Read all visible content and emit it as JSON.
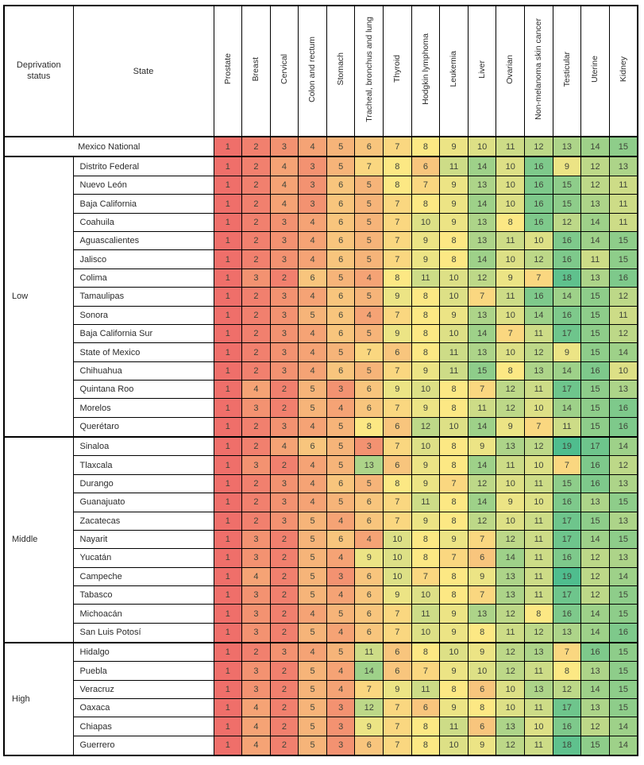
{
  "table": {
    "header": {
      "deprivation_label": "Deprivation status",
      "state_label": "State",
      "cancer_columns": [
        "Prostate",
        "Breast",
        "Cervical",
        "Colon and rectum",
        "Stomach",
        "Tracheal, bronchus and lung",
        "Thyroid",
        "Hodgkin lymphoma",
        "Leukemia",
        "Liver",
        "Ovarian",
        "Non-melanoma skin cancer",
        "Testicular",
        "Uterine",
        "Kidney"
      ]
    },
    "national": {
      "state": "Mexico National",
      "values": [
        1,
        2,
        3,
        4,
        5,
        6,
        7,
        8,
        9,
        10,
        11,
        12,
        13,
        14,
        15
      ]
    },
    "groups": [
      {
        "label": "Low",
        "rows": [
          {
            "state": "Distrito Federal",
            "values": [
              1,
              2,
              4,
              3,
              5,
              7,
              8,
              6,
              11,
              14,
              10,
              16,
              9,
              12,
              13
            ]
          },
          {
            "state": "Nuevo León",
            "values": [
              1,
              2,
              4,
              3,
              6,
              5,
              8,
              7,
              9,
              13,
              10,
              16,
              15,
              12,
              11
            ]
          },
          {
            "state": "Baja California",
            "values": [
              1,
              2,
              4,
              3,
              6,
              5,
              7,
              8,
              9,
              14,
              10,
              16,
              15,
              13,
              11
            ]
          },
          {
            "state": "Coahuila",
            "values": [
              1,
              2,
              3,
              4,
              6,
              5,
              7,
              10,
              9,
              13,
              8,
              16,
              12,
              14,
              11
            ]
          },
          {
            "state": "Aguascalientes",
            "values": [
              1,
              2,
              3,
              4,
              6,
              5,
              7,
              9,
              8,
              13,
              11,
              10,
              16,
              14,
              15
            ]
          },
          {
            "state": "Jalisco",
            "values": [
              1,
              2,
              3,
              4,
              6,
              5,
              7,
              9,
              8,
              14,
              10,
              12,
              16,
              11,
              15
            ]
          },
          {
            "state": "Colima",
            "values": [
              1,
              3,
              2,
              6,
              5,
              4,
              8,
              11,
              10,
              12,
              9,
              7,
              18,
              13,
              16
            ]
          },
          {
            "state": "Tamaulipas",
            "values": [
              1,
              2,
              3,
              4,
              6,
              5,
              9,
              8,
              10,
              7,
              11,
              16,
              14,
              15,
              12
            ]
          },
          {
            "state": "Sonora",
            "values": [
              1,
              2,
              3,
              5,
              6,
              4,
              7,
              8,
              9,
              13,
              10,
              14,
              16,
              15,
              11
            ]
          },
          {
            "state": "Baja California Sur",
            "values": [
              1,
              2,
              3,
              4,
              6,
              5,
              9,
              8,
              10,
              14,
              7,
              11,
              17,
              15,
              12
            ]
          },
          {
            "state": "State of Mexico",
            "values": [
              1,
              2,
              3,
              4,
              5,
              7,
              6,
              8,
              11,
              13,
              10,
              12,
              9,
              15,
              14
            ]
          },
          {
            "state": "Chihuahua",
            "values": [
              1,
              2,
              3,
              4,
              6,
              5,
              7,
              9,
              11,
              15,
              8,
              13,
              14,
              16,
              10
            ]
          },
          {
            "state": "Quintana Roo",
            "values": [
              1,
              4,
              2,
              5,
              3,
              6,
              9,
              10,
              8,
              7,
              12,
              11,
              17,
              15,
              13
            ]
          },
          {
            "state": "Morelos",
            "values": [
              1,
              3,
              2,
              5,
              4,
              6,
              7,
              9,
              8,
              11,
              12,
              10,
              14,
              15,
              16
            ]
          },
          {
            "state": "Querétaro",
            "values": [
              1,
              2,
              3,
              4,
              5,
              8,
              6,
              12,
              10,
              14,
              9,
              7,
              11,
              15,
              16
            ]
          }
        ]
      },
      {
        "label": "Middle",
        "rows": [
          {
            "state": "Sinaloa",
            "values": [
              1,
              2,
              4,
              6,
              5,
              3,
              7,
              10,
              8,
              9,
              13,
              12,
              19,
              17,
              14
            ]
          },
          {
            "state": "Tlaxcala",
            "values": [
              1,
              3,
              2,
              4,
              5,
              13,
              6,
              9,
              8,
              14,
              11,
              10,
              7,
              16,
              12
            ]
          },
          {
            "state": "Durango",
            "values": [
              1,
              2,
              3,
              4,
              6,
              5,
              8,
              9,
              7,
              12,
              10,
              11,
              15,
              16,
              13
            ]
          },
          {
            "state": "Guanajuato",
            "values": [
              1,
              2,
              3,
              4,
              5,
              6,
              7,
              11,
              8,
              14,
              9,
              10,
              16,
              13,
              15
            ]
          },
          {
            "state": "Zacatecas",
            "values": [
              1,
              2,
              3,
              5,
              4,
              6,
              7,
              9,
              8,
              12,
              10,
              11,
              17,
              15,
              13
            ]
          },
          {
            "state": "Nayarit",
            "values": [
              1,
              3,
              2,
              5,
              6,
              4,
              10,
              8,
              9,
              7,
              12,
              11,
              17,
              14,
              15
            ]
          },
          {
            "state": "Yucatán",
            "values": [
              1,
              3,
              2,
              5,
              4,
              9,
              10,
              8,
              7,
              6,
              14,
              11,
              16,
              12,
              13
            ]
          },
          {
            "state": "Campeche",
            "values": [
              1,
              4,
              2,
              5,
              3,
              6,
              10,
              7,
              8,
              9,
              13,
              11,
              19,
              12,
              14
            ]
          },
          {
            "state": "Tabasco",
            "values": [
              1,
              3,
              2,
              5,
              4,
              6,
              9,
              10,
              8,
              7,
              13,
              11,
              17,
              12,
              15
            ]
          },
          {
            "state": "Michoacán",
            "values": [
              1,
              3,
              2,
              4,
              5,
              6,
              7,
              11,
              9,
              13,
              12,
              8,
              16,
              14,
              15
            ]
          },
          {
            "state": "San Luis Potosí",
            "values": [
              1,
              3,
              2,
              5,
              4,
              6,
              7,
              10,
              9,
              8,
              11,
              12,
              13,
              14,
              16
            ]
          }
        ]
      },
      {
        "label": "High",
        "rows": [
          {
            "state": "Hidalgo",
            "values": [
              1,
              2,
              3,
              4,
              5,
              11,
              6,
              8,
              10,
              9,
              12,
              13,
              7,
              16,
              15
            ]
          },
          {
            "state": "Puebla",
            "values": [
              1,
              3,
              2,
              5,
              4,
              14,
              6,
              7,
              9,
              10,
              12,
              11,
              8,
              13,
              15
            ]
          },
          {
            "state": "Veracruz",
            "values": [
              1,
              3,
              2,
              5,
              4,
              7,
              9,
              11,
              8,
              6,
              10,
              13,
              12,
              14,
              15
            ]
          },
          {
            "state": "Oaxaca",
            "values": [
              1,
              4,
              2,
              5,
              3,
              12,
              7,
              6,
              9,
              8,
              10,
              11,
              17,
              13,
              15
            ]
          },
          {
            "state": "Chiapas",
            "values": [
              1,
              4,
              2,
              5,
              3,
              9,
              7,
              8,
              11,
              6,
              13,
              10,
              16,
              12,
              14
            ]
          },
          {
            "state": "Guerrero",
            "values": [
              1,
              4,
              2,
              5,
              3,
              6,
              7,
              8,
              10,
              9,
              12,
              11,
              18,
              15,
              14
            ]
          }
        ]
      }
    ]
  },
  "heatmap": {
    "scale_description": "rank 1 (red) through mid yellow to highest rank (green)",
    "stops": [
      {
        "value": 1,
        "color": "#EF6F6A"
      },
      {
        "value": 8,
        "color": "#FCE884"
      },
      {
        "value": 19,
        "color": "#4FBD8E"
      }
    ]
  },
  "colors": {
    "border": "#000000",
    "cell_text": "#3F4439",
    "header_text": "#2B2B2B",
    "background": "#FFFFFF"
  }
}
